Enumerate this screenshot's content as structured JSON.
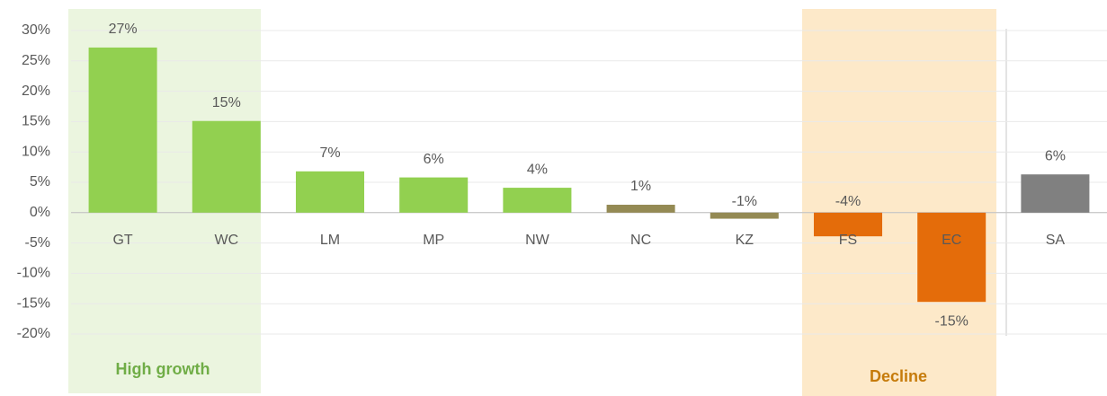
{
  "chart_data": {
    "type": "bar",
    "categories": [
      "GT",
      "WC",
      "LM",
      "MP",
      "NW",
      "NC",
      "KZ",
      "FS",
      "EC",
      "SA"
    ],
    "values": [
      27.2,
      15.1,
      6.8,
      5.8,
      4.1,
      1.3,
      -1.0,
      -3.9,
      -14.7,
      6.3
    ],
    "value_labels": [
      "27%",
      "15%",
      "7%",
      "6%",
      "4%",
      "1%",
      "-1%",
      "-4%",
      "-15%",
      "6%"
    ],
    "colors": [
      "#92d050",
      "#92d050",
      "#92d050",
      "#92d050",
      "#92d050",
      "#948a54",
      "#948a54",
      "#e46c0a",
      "#e46c0a",
      "#808080"
    ],
    "ylim": [
      -20,
      30
    ],
    "yticks": [
      {
        "value": -20,
        "label": "-20%"
      },
      {
        "value": -15,
        "label": "-15%"
      },
      {
        "value": -10,
        "label": "-10%"
      },
      {
        "value": -5,
        "label": "-5%"
      },
      {
        "value": 0,
        "label": "0%"
      },
      {
        "value": 5,
        "label": "5%"
      },
      {
        "value": 10,
        "label": "10%"
      },
      {
        "value": 15,
        "label": "15%"
      },
      {
        "value": 20,
        "label": "20%"
      },
      {
        "value": 25,
        "label": "25%"
      },
      {
        "value": 30,
        "label": "30%"
      }
    ],
    "grid": true,
    "annotations": [
      {
        "text": "High growth"
      },
      {
        "text": "Decline"
      }
    ]
  }
}
